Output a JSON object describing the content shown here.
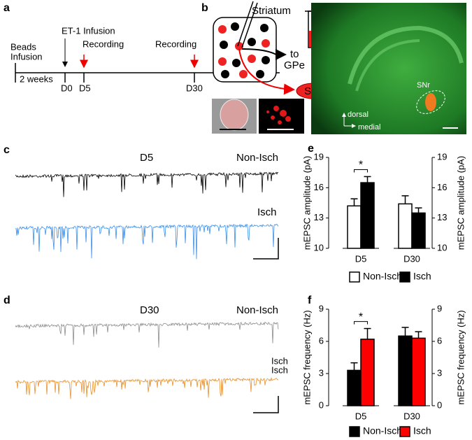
{
  "panel_a": {
    "label": "a",
    "beads": [
      "Beads",
      "Infusion"
    ],
    "weeks": "2 weeks",
    "et1": "ET-1 Infusion",
    "recording_1": "Recording",
    "recording_2": "Recording",
    "days": [
      "D0",
      "D5",
      "D30"
    ]
  },
  "panel_b": {
    "label": "b",
    "striatum": "Striatum",
    "to": "to",
    "gpe": "GPe",
    "snr": "SNr",
    "snr_image": "SNr",
    "dorsal": "dorsal",
    "medial": "medial"
  },
  "panel_c": {
    "label": "c",
    "title": "D5",
    "non_isch": "Non-Isch",
    "isch": "Isch"
  },
  "panel_d": {
    "label": "d",
    "title": "D30",
    "non_isch": "Non-Isch",
    "isch": [
      "Isch",
      "Isch"
    ]
  },
  "chart_data": [
    {
      "type": "bar",
      "panel_label": "e",
      "ylabel": "mEPSC amplitude (pA)",
      "y2label": "mEPSC amplitude (pA)",
      "categories": [
        "D5",
        "D30"
      ],
      "series": [
        {
          "name": "Non-Isch",
          "color": "#ffffff",
          "values": [
            14.2,
            14.4
          ],
          "errors": [
            0.7,
            0.8
          ]
        },
        {
          "name": "Isch",
          "color": "#000000",
          "values": [
            16.5,
            13.5
          ],
          "errors": [
            0.6,
            0.5
          ]
        }
      ],
      "ylim": [
        10,
        19
      ],
      "yticks": [
        10,
        13,
        16,
        19
      ],
      "y2lim": [
        10,
        19
      ],
      "y2ticks": [
        10,
        13,
        16,
        19
      ],
      "annotation": "*"
    },
    {
      "type": "bar",
      "panel_label": "f",
      "ylabel": "mEPSC frequency (Hz)",
      "y2label": "mEPSC frequency (Hz)",
      "categories": [
        "D5",
        "D30"
      ],
      "series": [
        {
          "name": "Non-Isch",
          "color": "#000000",
          "values": [
            3.3,
            6.5
          ],
          "errors": [
            0.7,
            0.8
          ]
        },
        {
          "name": "Isch",
          "color": "#ff0000",
          "values": [
            6.2,
            6.3
          ],
          "errors": [
            1.0,
            0.6
          ]
        }
      ],
      "ylim": [
        0,
        9
      ],
      "yticks": [
        0,
        3,
        6,
        9
      ],
      "y2lim": [
        0,
        9
      ],
      "y2ticks": [
        0,
        3,
        6,
        9
      ],
      "annotation": "*"
    }
  ]
}
